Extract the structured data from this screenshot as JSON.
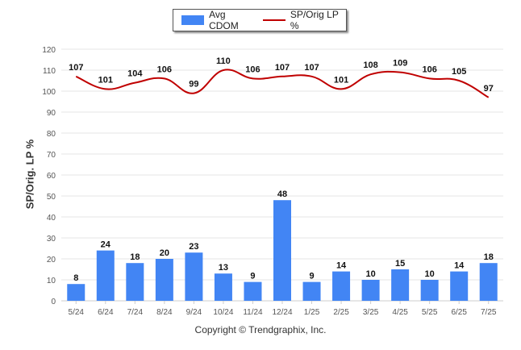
{
  "chart_data": {
    "type": "bar",
    "categories": [
      "5/24",
      "6/24",
      "7/24",
      "8/24",
      "9/24",
      "10/24",
      "11/24",
      "12/24",
      "1/25",
      "2/25",
      "3/25",
      "4/25",
      "5/25",
      "6/25",
      "7/25"
    ],
    "series": [
      {
        "name": "Avg CDOM",
        "type": "bar",
        "color": "#4285f4",
        "values": [
          8,
          24,
          18,
          20,
          23,
          13,
          9,
          48,
          9,
          14,
          10,
          15,
          10,
          14,
          18
        ]
      },
      {
        "name": "SP/Orig LP %",
        "type": "line",
        "color": "#c00000",
        "values": [
          107,
          101,
          104,
          106,
          99,
          110,
          106,
          107,
          107,
          101,
          108,
          109,
          106,
          105,
          97
        ]
      }
    ],
    "ylabel": "SP/Orig. LP %",
    "xlabel": "",
    "ylim": [
      0,
      120
    ],
    "yticks": [
      0,
      10,
      20,
      30,
      40,
      50,
      60,
      70,
      80,
      90,
      100,
      110,
      120
    ],
    "grid": true,
    "legend": "top-center"
  },
  "copyright": "Copyright © Trendgraphix, Inc."
}
